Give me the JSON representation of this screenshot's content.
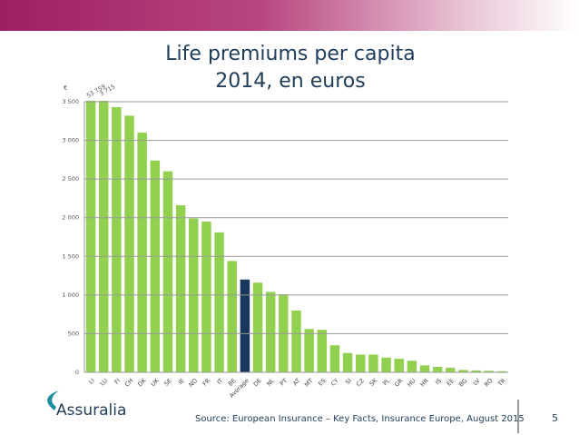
{
  "chart_data": {
    "type": "bar",
    "title": "Life premiums per capita",
    "subtitle": "2014, en euros",
    "y_unit": "€",
    "categories": [
      "LI",
      "LU",
      "FI",
      "CH",
      "DK",
      "UK",
      "SE",
      "IE",
      "NO",
      "FR",
      "IT",
      "BE",
      "Average",
      "DE",
      "NL",
      "PT",
      "AT",
      "MT",
      "ES",
      "CY",
      "SI",
      "CZ",
      "SK",
      "PL",
      "GR",
      "HU",
      "HR",
      "IS",
      "EE",
      "BG",
      "LV",
      "RO",
      "TR"
    ],
    "values": [
      53759,
      3715,
      3430,
      3320,
      3100,
      2740,
      2600,
      2160,
      1990,
      1950,
      1810,
      1440,
      1200,
      1160,
      1040,
      1010,
      800,
      560,
      550,
      350,
      250,
      230,
      230,
      190,
      175,
      150,
      90,
      70,
      60,
      30,
      25,
      20,
      15
    ],
    "value_labels": [
      "53 759",
      "3 715",
      null,
      null,
      null,
      null,
      null,
      null,
      null,
      null,
      null,
      null,
      null,
      null,
      null,
      null,
      null,
      null,
      null,
      null,
      null,
      null,
      null,
      null,
      null,
      null,
      null,
      null,
      null,
      null,
      null,
      null,
      null
    ],
    "colors": [
      "#92d050",
      "#92d050",
      "#92d050",
      "#92d050",
      "#92d050",
      "#92d050",
      "#92d050",
      "#92d050",
      "#92d050",
      "#92d050",
      "#92d050",
      "#92d050",
      "#17375e",
      "#92d050",
      "#92d050",
      "#92d050",
      "#92d050",
      "#92d050",
      "#92d050",
      "#92d050",
      "#92d050",
      "#92d050",
      "#92d050",
      "#92d050",
      "#92d050",
      "#92d050",
      "#92d050",
      "#92d050",
      "#92d050",
      "#92d050",
      "#92d050",
      "#92d050",
      "#92d050"
    ],
    "ylim": [
      0,
      3500
    ],
    "yticks": [
      0,
      500,
      {
        "value": 1000,
        "label": "1 000"
      },
      {
        "value": 1500,
        "label": "1 500"
      },
      {
        "value": 2000,
        "label": "2 000"
      },
      {
        "value": 2500,
        "label": "2 500"
      },
      {
        "value": 3000,
        "label": "3 000"
      },
      {
        "value": 3500,
        "label": "3 500"
      }
    ],
    "grid": true
  },
  "footer": {
    "logo": "Assuralia",
    "source": "Source: European Insurance – Key Facts, Insurance Europe, August 2015",
    "page": "5"
  }
}
